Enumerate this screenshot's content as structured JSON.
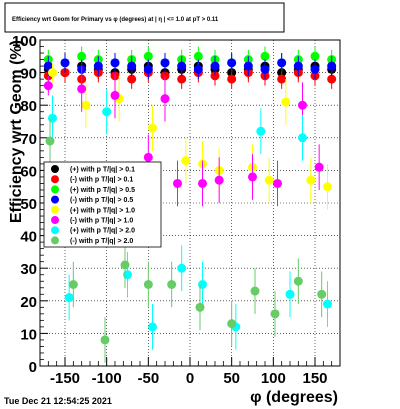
{
  "title": "Efficiency wrt Geom for Primary vs φ (degrees) at | η | <= 1.0 at pT > 0.11",
  "datestamp": "Tue Dec 21 12:54:25 2021",
  "chart_data": {
    "type": "scatter",
    "xlabel": "φ (degrees)",
    "ylabel": "Efficiency wrt Geom (%)",
    "xlim": [
      -180,
      180
    ],
    "ylim": [
      0,
      100
    ],
    "xticks": [
      -150,
      -100,
      -50,
      0,
      50,
      100,
      150
    ],
    "yticks": [
      0,
      10,
      20,
      30,
      40,
      50,
      60,
      70,
      80,
      90,
      100
    ],
    "grid": true,
    "legend_position": "left-middle",
    "series": [
      {
        "name": "(+) with p T/|q| > 0.1",
        "color": "#000000",
        "x": [
          -170,
          -150,
          -130,
          -110,
          -90,
          -70,
          -50,
          -30,
          -10,
          10,
          30,
          50,
          70,
          90,
          110,
          130,
          150,
          170
        ],
        "y": [
          91,
          90,
          92,
          91,
          90,
          91,
          92,
          90,
          91,
          92,
          91,
          90,
          91,
          92,
          90,
          91,
          92,
          91
        ]
      },
      {
        "name": "(-) with p T/|q| > 0.1",
        "color": "#ff0000",
        "x": [
          -170,
          -150,
          -130,
          -110,
          -90,
          -70,
          -50,
          -30,
          -10,
          10,
          30,
          50,
          70,
          90,
          110,
          130,
          150,
          170
        ],
        "y": [
          89,
          90,
          88,
          90,
          89,
          88,
          90,
          89,
          88,
          90,
          89,
          88,
          90,
          89,
          88,
          90,
          89,
          88
        ]
      },
      {
        "name": "(+) with p T/|q| > 0.5",
        "color": "#00ff00",
        "x": [
          -170,
          -150,
          -130,
          -110,
          -90,
          -70,
          -50,
          -30,
          -10,
          10,
          30,
          50,
          70,
          90,
          110,
          130,
          150,
          170
        ],
        "y": [
          94,
          93,
          95,
          94,
          93,
          94,
          95,
          93,
          94,
          95,
          94,
          93,
          94,
          95,
          93,
          94,
          95,
          94
        ]
      },
      {
        "name": "(-) with p T/|q| > 0.5",
        "color": "#0000ff",
        "x": [
          -170,
          -150,
          -130,
          -110,
          -90,
          -70,
          -50,
          -30,
          -10,
          10,
          30,
          50,
          70,
          90,
          110,
          130,
          150,
          170
        ],
        "y": [
          92,
          93,
          91,
          92,
          93,
          92,
          91,
          93,
          92,
          91,
          92,
          93,
          92,
          91,
          93,
          92,
          91,
          92
        ]
      },
      {
        "name": "(+) with p T/|q| > 1.0",
        "color": "#ffff00",
        "x": [
          -165,
          -125,
          -85,
          -45,
          -5,
          15,
          35,
          75,
          95,
          115,
          145,
          165
        ],
        "y": [
          90,
          80,
          82,
          73,
          63,
          62,
          60,
          61,
          57,
          81,
          57,
          55
        ]
      },
      {
        "name": "(-) with p T/|q| > 1.0",
        "color": "#ff00ff",
        "x": [
          -170,
          -130,
          -90,
          -50,
          -30,
          -15,
          15,
          35,
          75,
          105,
          135,
          155
        ],
        "y": [
          86,
          85,
          83,
          64,
          82,
          56,
          56,
          57,
          58,
          56,
          80,
          61
        ]
      },
      {
        "name": "(+) with p T/|q| > 2.0",
        "color": "#00ffff",
        "x": [
          -165,
          -145,
          -100,
          -75,
          -45,
          -10,
          15,
          55,
          85,
          120,
          135,
          165
        ],
        "y": [
          76,
          21,
          78,
          28,
          12,
          30,
          25,
          12,
          72,
          22,
          70,
          19
        ]
      },
      {
        "name": "(-) with p T/|q| > 2.0",
        "color": "#66cc66",
        "x": [
          -168,
          -140,
          -102,
          -78,
          -50,
          -22,
          12,
          50,
          78,
          102,
          130,
          158
        ],
        "y": [
          69,
          25,
          8,
          31,
          25,
          25,
          18,
          13,
          23,
          16,
          26,
          22
        ]
      }
    ]
  }
}
